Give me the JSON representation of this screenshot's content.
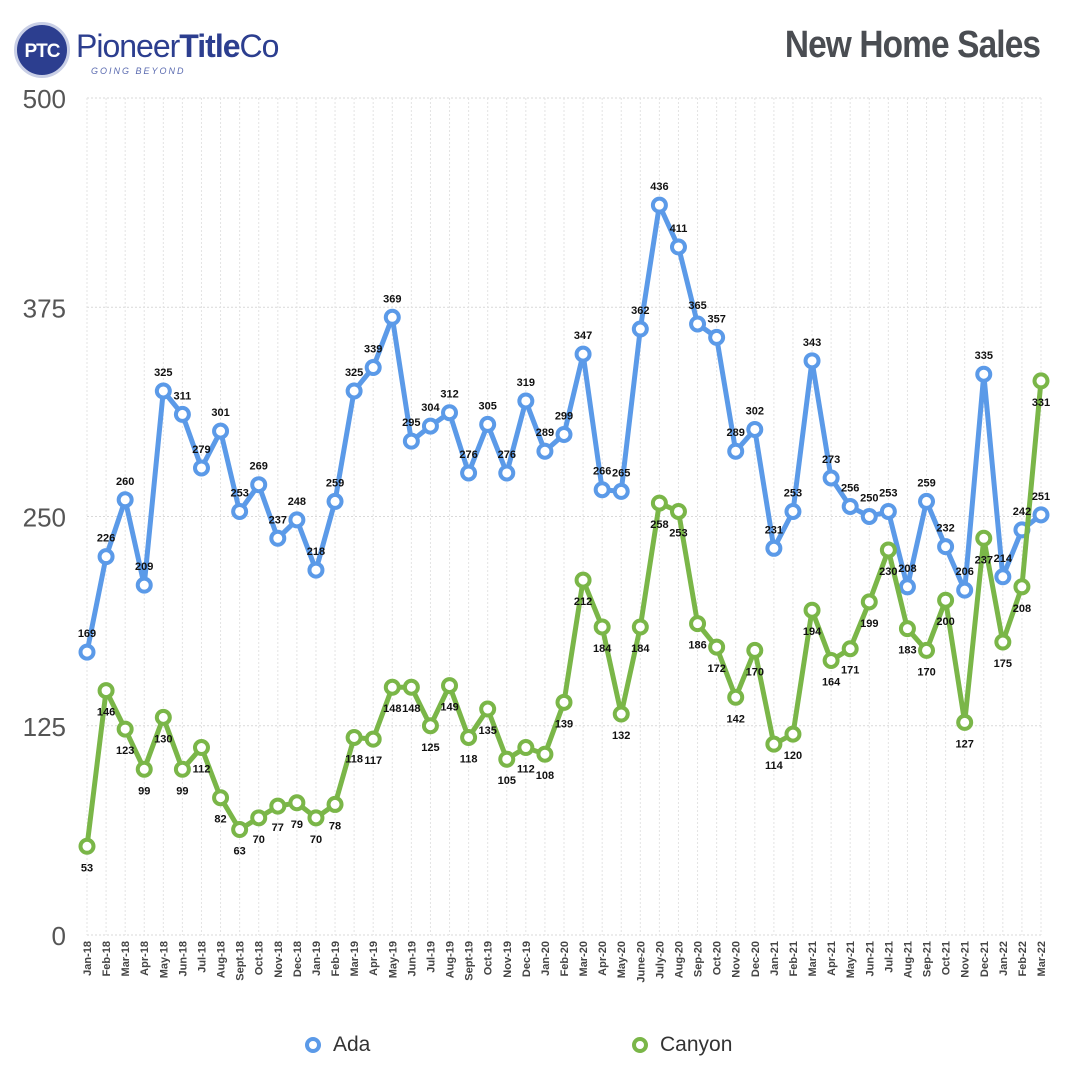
{
  "header": {
    "logo_badge": "PTC",
    "logo_name_a": "Pioneer",
    "logo_name_b": "Title",
    "logo_name_c": "Co",
    "logo_tagline": "GOING BEYOND",
    "title": "New Home Sales"
  },
  "chart_data": {
    "type": "line",
    "title": "New Home Sales",
    "xlabel": "",
    "ylabel": "",
    "ylim": [
      0,
      500
    ],
    "yticks": [
      0,
      125,
      250,
      375,
      500
    ],
    "grid": true,
    "legend": "bottom",
    "categories": [
      "Jan-18",
      "Feb-18",
      "Mar-18",
      "Apr-18",
      "May-18",
      "Jun-18",
      "Jul-18",
      "Aug-18",
      "Sept-18",
      "Oct-18",
      "Nov-18",
      "Dec-18",
      "Jan-19",
      "Feb-19",
      "Mar-19",
      "Apr-19",
      "May-19",
      "Jun-19",
      "Jul-19",
      "Aug-19",
      "Sept-19",
      "Oct-19",
      "Nov-19",
      "Dec-19",
      "Jan-20",
      "Feb-20",
      "Mar-20",
      "Apr-20",
      "May-20",
      "June-20",
      "July-20",
      "Aug-20",
      "Sep-20",
      "Oct-20",
      "Nov-20",
      "Dec-20",
      "Jan-21",
      "Feb-21",
      "Mar-21",
      "Apr-21",
      "May-21",
      "Jun-21",
      "Jul-21",
      "Aug-21",
      "Sep-21",
      "Oct-21",
      "Nov-21",
      "Dec-21",
      "Jan-22",
      "Feb-22",
      "Mar-22"
    ],
    "series": [
      {
        "name": "Ada",
        "color": "#5b9ae8",
        "values": [
          169,
          226,
          260,
          209,
          325,
          311,
          279,
          301,
          253,
          269,
          237,
          248,
          218,
          259,
          325,
          339,
          369,
          295,
          304,
          312,
          276,
          305,
          276,
          319,
          289,
          299,
          347,
          266,
          265,
          362,
          436,
          411,
          365,
          357,
          289,
          302,
          231,
          253,
          343,
          273,
          256,
          250,
          253,
          208,
          259,
          232,
          206,
          335,
          214,
          242,
          251
        ]
      },
      {
        "name": "Canyon",
        "color": "#7ab648",
        "values": [
          53,
          146,
          123,
          99,
          130,
          99,
          112,
          82,
          63,
          70,
          77,
          79,
          70,
          78,
          118,
          117,
          148,
          148,
          125,
          149,
          118,
          135,
          105,
          112,
          108,
          139,
          212,
          184,
          132,
          184,
          258,
          253,
          186,
          172,
          142,
          170,
          114,
          120,
          194,
          164,
          171,
          199,
          230,
          183,
          170,
          200,
          127,
          237,
          175,
          208,
          331
        ]
      }
    ]
  }
}
